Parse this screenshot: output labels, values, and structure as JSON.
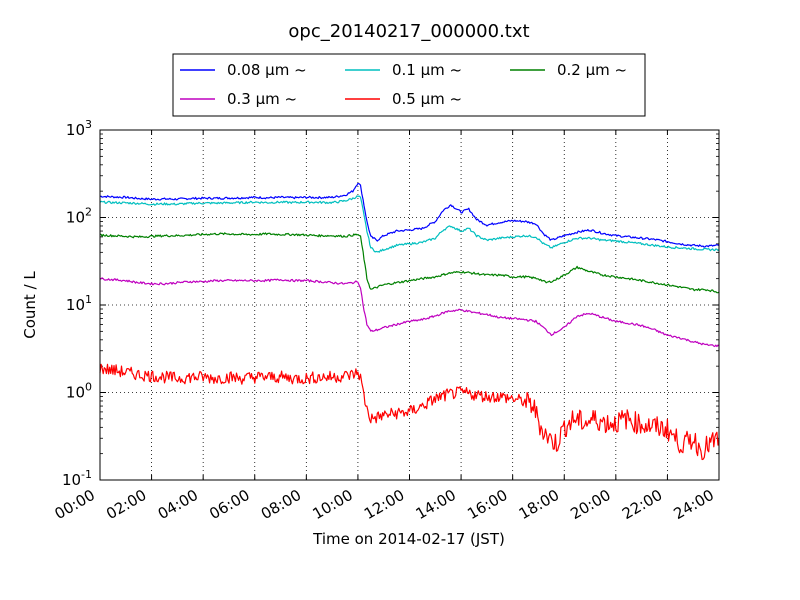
{
  "chart_data": {
    "type": "line",
    "title": "opc_20140217_000000.txt",
    "xlabel": "Time on 2014-02-17 (JST)",
    "ylabel": "Count / L",
    "x_unit": "hours",
    "xlim": [
      0,
      24
    ],
    "ylim": [
      0.1,
      1000
    ],
    "y_scale": "log",
    "grid": true,
    "legend_placement": "top-center",
    "x_ticks": [
      {
        "value": 0,
        "label": "00:00"
      },
      {
        "value": 2,
        "label": "02:00"
      },
      {
        "value": 4,
        "label": "04:00"
      },
      {
        "value": 6,
        "label": "06:00"
      },
      {
        "value": 8,
        "label": "08:00"
      },
      {
        "value": 10,
        "label": "10:00"
      },
      {
        "value": 12,
        "label": "12:00"
      },
      {
        "value": 14,
        "label": "14:00"
      },
      {
        "value": 16,
        "label": "16:00"
      },
      {
        "value": 18,
        "label": "18:00"
      },
      {
        "value": 20,
        "label": "20:00"
      },
      {
        "value": 22,
        "label": "22:00"
      },
      {
        "value": 24,
        "label": "24:00"
      }
    ],
    "y_ticks": [
      {
        "value": 0.1,
        "base": "10",
        "exp": "-1"
      },
      {
        "value": 1,
        "base": "10",
        "exp": "0"
      },
      {
        "value": 10,
        "base": "10",
        "exp": "1"
      },
      {
        "value": 100,
        "base": "10",
        "exp": "2"
      },
      {
        "value": 1000,
        "base": "10",
        "exp": "3"
      }
    ],
    "series": [
      {
        "name": "0.08 μm ~",
        "color": "#0000ff",
        "x": [
          0,
          0.5,
          1,
          1.5,
          2,
          2.5,
          3,
          3.5,
          4,
          4.5,
          5,
          5.5,
          6,
          6.5,
          7,
          7.5,
          8,
          8.5,
          9,
          9.5,
          9.8,
          10,
          10.1,
          10.2,
          10.35,
          10.5,
          10.75,
          11,
          11.5,
          12,
          12.5,
          13,
          13.3,
          13.6,
          14,
          14.3,
          14.6,
          15,
          15.5,
          16,
          16.5,
          16.9,
          17.2,
          17.5,
          18,
          18.5,
          19,
          19.5,
          20,
          20.5,
          21,
          21.5,
          22,
          22.5,
          23,
          23.5,
          24
        ],
        "y": [
          175,
          172,
          170,
          165,
          162,
          163,
          162,
          165,
          166,
          166,
          167,
          168,
          170,
          168,
          170,
          168,
          170,
          169,
          170,
          180,
          200,
          250,
          230,
          160,
          90,
          60,
          55,
          62,
          70,
          72,
          75,
          90,
          120,
          140,
          115,
          125,
          95,
          82,
          88,
          92,
          90,
          85,
          65,
          55,
          62,
          68,
          72,
          66,
          62,
          60,
          58,
          56,
          53,
          50,
          48,
          47,
          48
        ]
      },
      {
        "name": "0.1 μm ~",
        "color": "#00bfbf",
        "x": [
          0,
          0.5,
          1,
          1.5,
          2,
          2.5,
          3,
          3.5,
          4,
          4.5,
          5,
          5.5,
          6,
          6.5,
          7,
          7.5,
          8,
          8.5,
          9,
          9.5,
          9.8,
          10,
          10.1,
          10.2,
          10.35,
          10.5,
          10.75,
          11,
          11.5,
          12,
          12.5,
          13,
          13.3,
          13.6,
          14,
          14.3,
          14.6,
          15,
          15.5,
          16,
          16.5,
          16.9,
          17.2,
          17.5,
          18,
          18.5,
          19,
          19.5,
          20,
          20.5,
          21,
          21.5,
          22,
          22.5,
          23,
          23.5,
          24
        ],
        "y": [
          150,
          148,
          147,
          145,
          142,
          143,
          142,
          145,
          146,
          146,
          147,
          148,
          150,
          148,
          150,
          148,
          150,
          149,
          148,
          155,
          165,
          175,
          170,
          120,
          70,
          45,
          40,
          43,
          48,
          50,
          52,
          58,
          72,
          80,
          70,
          75,
          62,
          55,
          58,
          60,
          62,
          60,
          50,
          45,
          52,
          58,
          58,
          55,
          54,
          52,
          50,
          48,
          46,
          45,
          44,
          43,
          43
        ]
      },
      {
        "name": "0.2 μm ~",
        "color": "#008000",
        "x": [
          0,
          0.5,
          1,
          1.5,
          2,
          2.5,
          3,
          3.5,
          4,
          4.5,
          5,
          5.5,
          6,
          6.5,
          7,
          7.5,
          8,
          8.5,
          9,
          9.5,
          9.8,
          10,
          10.1,
          10.2,
          10.35,
          10.5,
          10.75,
          11,
          11.5,
          12,
          12.5,
          13,
          13.5,
          14,
          14.5,
          15,
          15.5,
          16,
          16.5,
          17,
          17.3,
          17.6,
          18,
          18.5,
          19,
          19.5,
          20,
          20.5,
          21,
          21.5,
          22,
          22.5,
          23,
          23.5,
          24
        ],
        "y": [
          63,
          62,
          61,
          60,
          61,
          62,
          62,
          63,
          64,
          65,
          65,
          64,
          64,
          65,
          64,
          64,
          63,
          62,
          62,
          61,
          63,
          64,
          60,
          40,
          20,
          15,
          16,
          17,
          18,
          19,
          20,
          21,
          23,
          24,
          23,
          22,
          22,
          21,
          21,
          20,
          18,
          19,
          22,
          27,
          24,
          22,
          21,
          20,
          19,
          18,
          17,
          16,
          15,
          15,
          14
        ]
      },
      {
        "name": "0.3 μm ~",
        "color": "#bf00bf",
        "x": [
          0,
          0.5,
          1,
          1.5,
          2,
          2.5,
          3,
          3.5,
          4,
          4.5,
          5,
          5.5,
          6,
          6.5,
          7,
          7.5,
          8,
          8.5,
          9,
          9.5,
          9.8,
          10,
          10.1,
          10.2,
          10.35,
          10.5,
          10.75,
          11,
          11.5,
          12,
          12.5,
          13,
          13.5,
          14,
          14.5,
          15,
          15.5,
          16,
          16.5,
          16.9,
          17.2,
          17.5,
          18,
          18.5,
          19,
          19.5,
          20,
          20.5,
          21,
          21.5,
          22,
          22.5,
          23,
          23.5,
          24
        ],
        "y": [
          20,
          19.5,
          19,
          18,
          17.5,
          17.5,
          18,
          18.5,
          18.5,
          19,
          19,
          19,
          19,
          19,
          19.5,
          19,
          19,
          18.5,
          18,
          17.5,
          18,
          18.5,
          16,
          10,
          6,
          5,
          5.2,
          5.5,
          6,
          6.5,
          6.8,
          7.5,
          8.5,
          8.8,
          8.2,
          7.8,
          7.2,
          7,
          6.8,
          6.5,
          5.5,
          4.6,
          5.5,
          7.5,
          8,
          7.2,
          6.5,
          6.2,
          5.8,
          5.2,
          4.5,
          4.2,
          3.8,
          3.5,
          3.4
        ]
      },
      {
        "name": "0.5 μm ~",
        "color": "#ff0000",
        "x": [
          0,
          0.5,
          1,
          1.5,
          2,
          2.5,
          3,
          3.5,
          4,
          4.5,
          5,
          5.5,
          6,
          6.5,
          7,
          7.5,
          8,
          8.5,
          9,
          9.5,
          9.8,
          10,
          10.1,
          10.2,
          10.35,
          10.5,
          10.75,
          11,
          11.5,
          12,
          12.5,
          13,
          13.5,
          14,
          14.5,
          15,
          15.5,
          16,
          16.4,
          16.8,
          17.1,
          17.4,
          17.7,
          18,
          18.4,
          18.8,
          19.2,
          19.6,
          20,
          20.4,
          20.8,
          21.2,
          21.6,
          22,
          22.3,
          22.6,
          23,
          23.3,
          23.6,
          24
        ],
        "y": [
          1.9,
          1.8,
          1.7,
          1.6,
          1.55,
          1.5,
          1.45,
          1.5,
          1.5,
          1.45,
          1.5,
          1.45,
          1.5,
          1.5,
          1.5,
          1.45,
          1.45,
          1.5,
          1.5,
          1.55,
          1.6,
          1.7,
          1.5,
          1.0,
          0.65,
          0.5,
          0.52,
          0.55,
          0.58,
          0.6,
          0.7,
          0.85,
          0.95,
          1.0,
          0.95,
          0.9,
          0.9,
          0.85,
          0.8,
          0.7,
          0.4,
          0.3,
          0.26,
          0.4,
          0.5,
          0.45,
          0.5,
          0.45,
          0.45,
          0.5,
          0.45,
          0.42,
          0.4,
          0.38,
          0.3,
          0.25,
          0.3,
          0.22,
          0.25,
          0.3
        ]
      }
    ]
  }
}
